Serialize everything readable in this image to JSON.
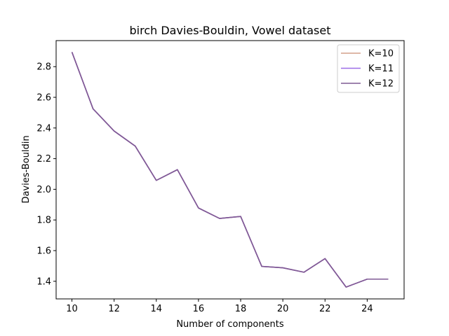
{
  "chart_data": {
    "type": "line",
    "title": "birch Davies-Bouldin, Vowel dataset",
    "xlabel": "Number of components",
    "ylabel": "Davies-Bouldin",
    "x": [
      10,
      11,
      12,
      13,
      14,
      15,
      16,
      17,
      18,
      19,
      20,
      21,
      22,
      23,
      24,
      25
    ],
    "xlim": [
      9.25,
      25.75
    ],
    "ylim": [
      1.285,
      2.97
    ],
    "xticks": [
      10,
      12,
      14,
      16,
      18,
      20,
      22,
      24
    ],
    "yticks": [
      1.4,
      1.6,
      1.8,
      2.0,
      2.2,
      2.4,
      2.6,
      2.8
    ],
    "xtick_labels": [
      "10",
      "12",
      "14",
      "16",
      "18",
      "20",
      "22",
      "24"
    ],
    "ytick_labels": [
      "1.4",
      "1.6",
      "1.8",
      "2.0",
      "2.2",
      "2.4",
      "2.6",
      "2.8"
    ],
    "grid": false,
    "legend_position": "top-right",
    "series": [
      {
        "name": "K=10",
        "color": "#d4a08a",
        "values": [
          2.895,
          2.525,
          2.38,
          2.282,
          2.058,
          2.128,
          1.878,
          1.81,
          1.823,
          1.497,
          1.488,
          1.459,
          1.548,
          1.362,
          1.414,
          1.414
        ]
      },
      {
        "name": "K=11",
        "color": "#9b6de8",
        "values": [
          2.895,
          2.525,
          2.38,
          2.282,
          2.058,
          2.128,
          1.878,
          1.81,
          1.823,
          1.497,
          1.488,
          1.459,
          1.548,
          1.362,
          1.414,
          1.414
        ]
      },
      {
        "name": "K=12",
        "color": "#7f5a94",
        "values": [
          2.895,
          2.525,
          2.38,
          2.282,
          2.058,
          2.128,
          1.878,
          1.81,
          1.823,
          1.497,
          1.488,
          1.459,
          1.548,
          1.362,
          1.414,
          1.414
        ]
      }
    ]
  }
}
